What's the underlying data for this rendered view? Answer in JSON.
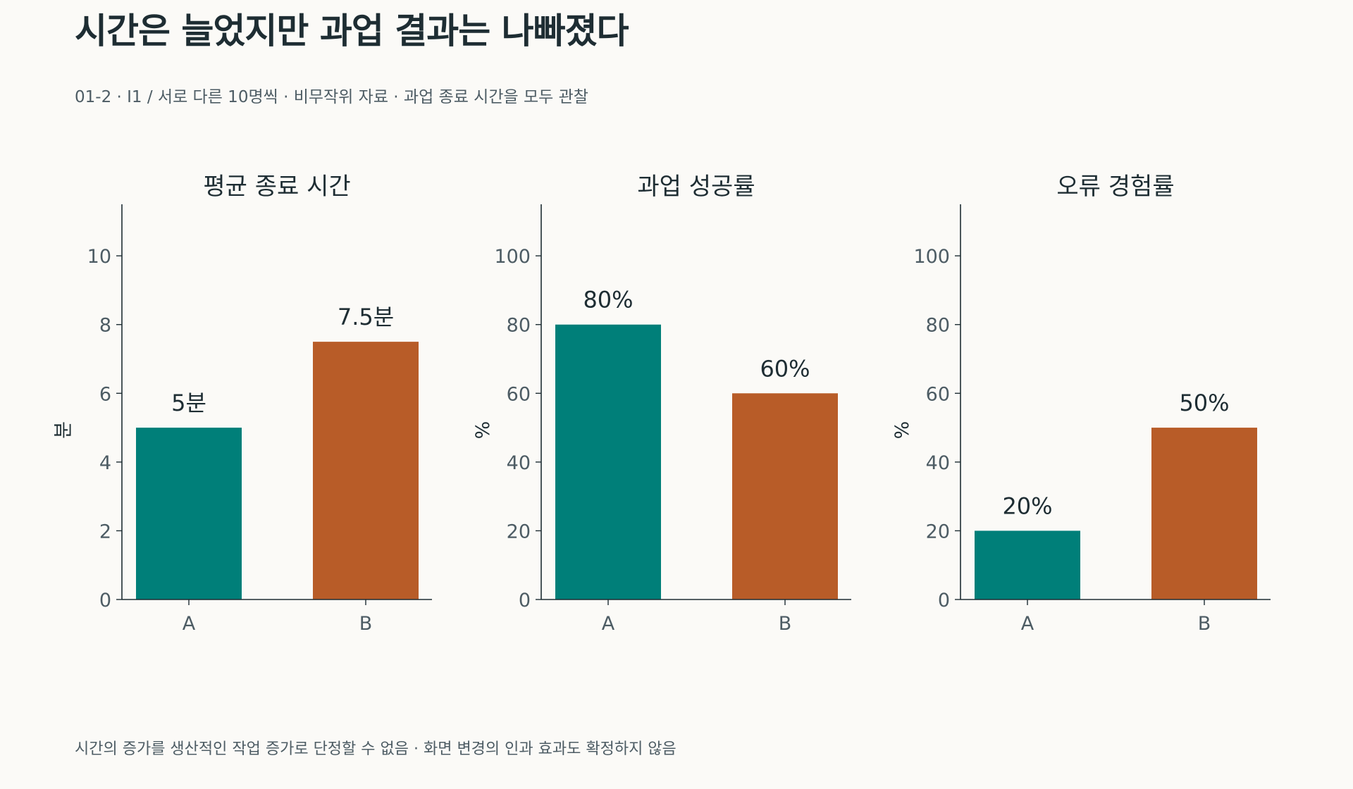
{
  "title": "시간은 늘었지만 과업 결과는 나빠졌다",
  "subtitle": "01-2 · I1 / 서로 다른 10명씩 · 비무작위 자료 · 과업 종료 시간을 모두 관찰",
  "footnote": "시간의 증가를 생산적인 작업 증가로 단정할 수 없음 · 화면 변경의 인과 효과도 확정하지 않음",
  "colors": {
    "A": "#007f79",
    "B": "#b85c28"
  },
  "chart_data": [
    {
      "type": "bar",
      "title": "평균 종료 시간",
      "ylabel": "분",
      "categories": [
        "A",
        "B"
      ],
      "values": [
        5,
        7.5
      ],
      "data_labels": [
        "5분",
        "7.5분"
      ],
      "ylim": [
        0,
        11.5
      ],
      "yticks": [
        0,
        2,
        4,
        6,
        8,
        10
      ]
    },
    {
      "type": "bar",
      "title": "과업 성공률",
      "ylabel": "%",
      "categories": [
        "A",
        "B"
      ],
      "values": [
        80,
        60
      ],
      "data_labels": [
        "80%",
        "60%"
      ],
      "ylim": [
        0,
        115
      ],
      "yticks": [
        0,
        20,
        40,
        60,
        80,
        100
      ]
    },
    {
      "type": "bar",
      "title": "오류 경험률",
      "ylabel": "%",
      "categories": [
        "A",
        "B"
      ],
      "values": [
        20,
        50
      ],
      "data_labels": [
        "20%",
        "50%"
      ],
      "ylim": [
        0,
        115
      ],
      "yticks": [
        0,
        20,
        40,
        60,
        80,
        100
      ]
    }
  ]
}
